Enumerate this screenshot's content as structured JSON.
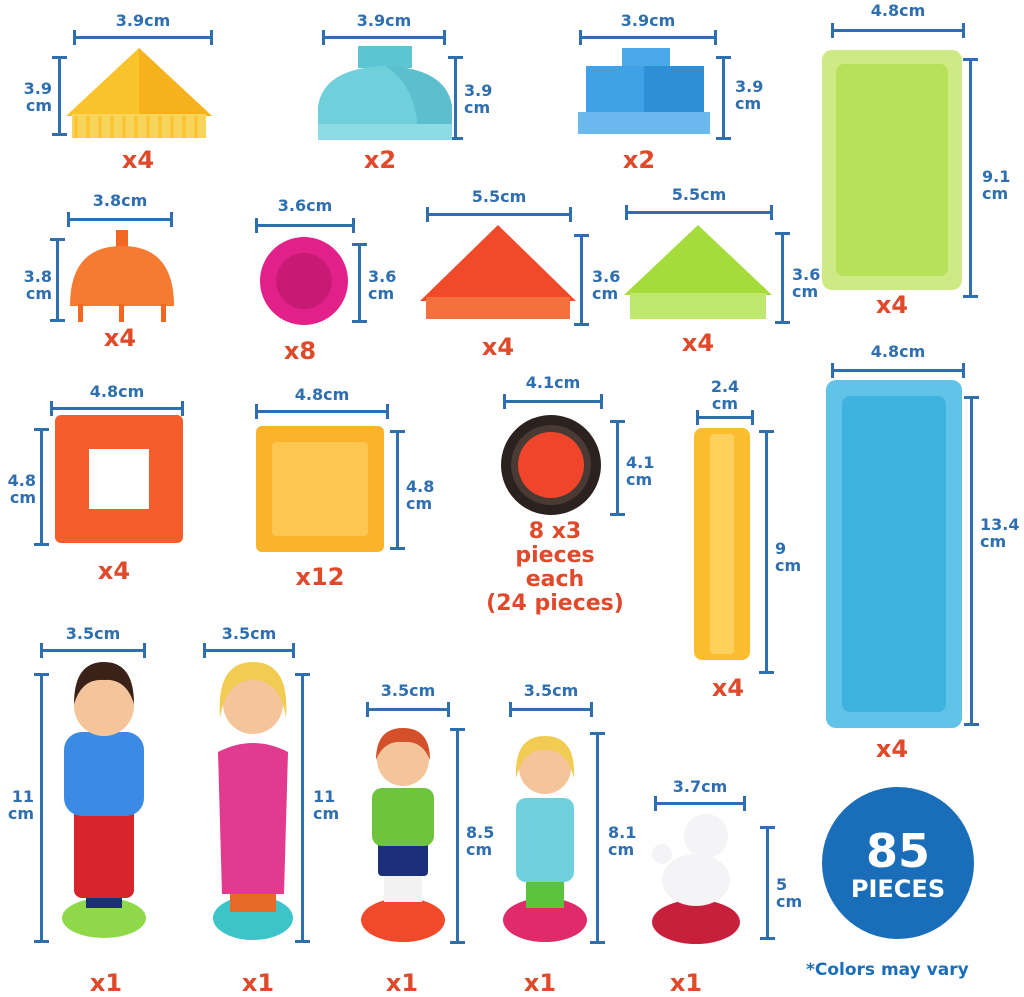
{
  "pieces": [
    {
      "width": "3.9cm",
      "height": [
        "3.9",
        "cm"
      ],
      "count": "x4",
      "shape": "yellow-pyramid",
      "color": "#f9c42b"
    },
    {
      "width": "3.9cm",
      "height": [
        "3.9",
        "cm"
      ],
      "count": "x2",
      "shape": "aqua-dome-roof",
      "color": "#6fd0dc"
    },
    {
      "width": "3.9cm",
      "height": [
        "3.9",
        "cm"
      ],
      "count": "x2",
      "shape": "blue-block-roof",
      "color": "#3fa2e6"
    },
    {
      "width": "4.8cm",
      "height": [
        "9.1",
        "cm"
      ],
      "count": "x4",
      "shape": "lime-long-panel",
      "color": "#b8e05a"
    },
    {
      "width": "3.8cm",
      "height": [
        "3.8",
        "cm"
      ],
      "count": "x4",
      "shape": "orange-dome",
      "color": "#f57a32"
    },
    {
      "width": "3.6cm",
      "height": [
        "3.6",
        "cm"
      ],
      "count": "x8",
      "shape": "pink-round",
      "color": "#e2208a"
    },
    {
      "width": "5.5cm",
      "height": [
        "3.6",
        "cm"
      ],
      "count": "x4",
      "shape": "red-triangle",
      "color": "#f04a2a"
    },
    {
      "width": "5.5cm",
      "height": [
        "3.6",
        "cm"
      ],
      "count": "x4",
      "shape": "green-triangle",
      "color": "#a5dc3c"
    },
    {
      "width": "4.8cm",
      "height": [
        "4.8",
        "cm"
      ],
      "count": "x4",
      "shape": "orange-square-frame",
      "color": "#f45e2c"
    },
    {
      "width": "4.8cm",
      "height": [
        "4.8",
        "cm"
      ],
      "count": "x12",
      "shape": "yellow-square",
      "color": "#fbb32c"
    },
    {
      "width": "4.1cm",
      "height": [
        "4.1",
        "cm"
      ],
      "count": [
        "8 x3",
        "pieces",
        "each",
        "(24 pieces)"
      ],
      "shape": "wheel",
      "color": "#f0452a"
    },
    {
      "width": [
        "2.4",
        "cm"
      ],
      "height": [
        "9",
        "cm"
      ],
      "count": "x4",
      "shape": "yellow-stick",
      "color": "#fbbd2e"
    },
    {
      "width": "4.8cm",
      "height": [
        "13.4",
        "cm"
      ],
      "count": "x4",
      "shape": "blue-long-panel",
      "color": "#3fb3e0"
    }
  ],
  "figures": [
    {
      "width": "3.5cm",
      "height": [
        "11",
        "cm"
      ],
      "count": "x1",
      "figure": "man-figure"
    },
    {
      "width": "3.5cm",
      "height": [
        "11",
        "cm"
      ],
      "count": "x1",
      "figure": "woman-figure"
    },
    {
      "width": "3.5cm",
      "height": [
        "8.5",
        "cm"
      ],
      "count": "x1",
      "figure": "boy-figure"
    },
    {
      "width": "3.5cm",
      "height": [
        "8.1",
        "cm"
      ],
      "count": "x1",
      "figure": "girl-figure"
    },
    {
      "width": "3.7cm",
      "height": [
        "5",
        "cm"
      ],
      "count": "x1",
      "figure": "poodle-figure"
    }
  ],
  "badge": {
    "number": "85",
    "label": "PIECES"
  },
  "note": "*Colors may vary",
  "colors": {
    "dimension": "#2f6fb0",
    "count": "#e0492a",
    "badge": "#1a6db8"
  }
}
